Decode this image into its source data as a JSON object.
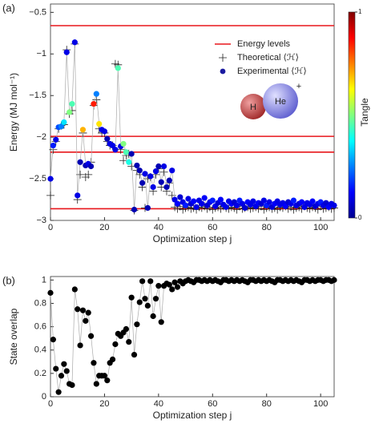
{
  "chart_data": [
    {
      "type": "scatter",
      "panel_label": "(a)",
      "xlabel": "Optimization step j",
      "ylabel": "Energy (MJ mol⁻¹)",
      "xlim": [
        0,
        105
      ],
      "xticks": [
        0,
        20,
        40,
        60,
        80,
        100
      ],
      "ylim": [
        -3.0,
        -0.4
      ],
      "yticks": [
        {
          "value": -3,
          "label": "−3"
        },
        {
          "value": -2.5,
          "label": "−2.5"
        },
        {
          "value": -2,
          "label": "−2"
        },
        {
          "value": -1.5,
          "label": "−1.5"
        },
        {
          "value": -1,
          "label": "−1"
        },
        {
          "value": -0.5,
          "label": "−0.5"
        }
      ],
      "legend": "upper right",
      "colorbar": {
        "label": "Tangle",
        "clim": [
          0,
          1
        ],
        "cticks": [
          0,
          1
        ],
        "colormap": "jet"
      },
      "molecule": {
        "labels": [
          "H",
          "He",
          "+"
        ]
      },
      "series": [
        {
          "name": "Energy levels",
          "style": "hline",
          "color": "#e8161b",
          "values": [
            -0.66,
            -1.99,
            -2.18,
            -2.86
          ]
        },
        {
          "name": "Theoretical ⟨ℋ⟩",
          "style": "plus",
          "color": "#222222",
          "x": [
            0,
            1,
            2,
            3,
            4,
            5,
            6,
            7,
            8,
            9,
            10,
            11,
            12,
            13,
            14,
            15,
            16,
            17,
            18,
            19,
            20,
            21,
            22,
            23,
            24,
            25,
            26,
            27,
            28,
            29,
            30,
            31,
            32,
            33,
            34,
            35,
            36,
            37,
            38,
            39,
            40,
            41,
            42,
            43,
            44,
            45,
            46,
            47,
            48,
            49,
            50,
            51,
            52,
            53,
            54,
            55,
            56,
            57,
            58,
            59,
            60,
            61,
            62,
            63,
            64,
            65,
            66,
            67,
            68,
            69,
            70,
            71,
            72,
            73,
            74,
            75,
            76,
            77,
            78,
            79,
            80,
            81,
            82,
            83,
            84,
            85,
            86,
            87,
            88,
            89,
            90,
            91,
            92,
            93,
            94,
            95,
            96,
            97,
            98,
            99,
            100,
            101,
            102,
            103,
            104,
            105
          ],
          "values": [
            -2.7,
            -2.15,
            -2.05,
            -1.9,
            -1.86,
            -1.85,
            -0.95,
            -1.72,
            -1.68,
            -0.88,
            -2.75,
            -2.45,
            -1.95,
            -2.48,
            -2.45,
            -2.3,
            -1.62,
            -1.55,
            -1.9,
            -1.95,
            -1.95,
            -2.05,
            -2.1,
            -2.1,
            -1.12,
            -1.13,
            -2.15,
            -2.28,
            -2.22,
            -2.2,
            -2.35,
            -2.88,
            -2.4,
            -2.45,
            -2.6,
            -2.85,
            -2.5,
            -2.48,
            -2.65,
            -2.45,
            -2.38,
            -2.6,
            -2.42,
            -2.65,
            -2.55,
            -2.7,
            -2.84,
            -2.86,
            -2.83,
            -2.87,
            -2.85,
            -2.84,
            -2.86,
            -2.85,
            -2.87,
            -2.84,
            -2.85,
            -2.83,
            -2.86,
            -2.84,
            -2.87,
            -2.85,
            -2.84,
            -2.86,
            -2.83,
            -2.85,
            -2.86,
            -2.84,
            -2.85,
            -2.87,
            -2.83,
            -2.86,
            -2.85,
            -2.84,
            -2.86,
            -2.85,
            -2.84,
            -2.86,
            -2.83,
            -2.87,
            -2.85,
            -2.84,
            -2.86,
            -2.85,
            -2.87,
            -2.84,
            -2.85,
            -2.83,
            -2.86,
            -2.84,
            -2.87,
            -2.85,
            -2.84,
            -2.86,
            -2.83,
            -2.85,
            -2.86,
            -2.84,
            -2.85,
            -2.87,
            -2.83,
            -2.86,
            -2.85,
            -2.84,
            -2.86,
            -2.85
          ]
        },
        {
          "name": "Experimental ⟨ℋ⟩",
          "style": "dot",
          "color": "#1a1aa0",
          "line_color": "#aaaaaa",
          "x": [
            0,
            1,
            2,
            3,
            4,
            5,
            6,
            7,
            8,
            9,
            10,
            11,
            12,
            13,
            14,
            15,
            16,
            17,
            18,
            19,
            20,
            21,
            22,
            23,
            24,
            25,
            26,
            27,
            28,
            29,
            30,
            31,
            32,
            33,
            34,
            35,
            36,
            37,
            38,
            39,
            40,
            41,
            42,
            43,
            44,
            45,
            46,
            47,
            48,
            49,
            50,
            51,
            52,
            53,
            54,
            55,
            56,
            57,
            58,
            59,
            60,
            61,
            62,
            63,
            64,
            65,
            66,
            67,
            68,
            69,
            70,
            71,
            72,
            73,
            74,
            75,
            76,
            77,
            78,
            79,
            80,
            81,
            82,
            83,
            84,
            85,
            86,
            87,
            88,
            89,
            90,
            91,
            92,
            93,
            94,
            95,
            96,
            97,
            98,
            99,
            100,
            101,
            102,
            103,
            104,
            105
          ],
          "values": [
            -2.5,
            -2.1,
            -2.03,
            -1.88,
            -1.87,
            -1.82,
            -0.98,
            -1.7,
            -1.6,
            -0.86,
            -2.7,
            -2.3,
            -1.91,
            -2.34,
            -2.32,
            -2.35,
            -1.6,
            -1.48,
            -1.84,
            -1.91,
            -1.93,
            -2.02,
            -2.08,
            -2.1,
            -2.15,
            -1.17,
            -2.11,
            -2.08,
            -2.18,
            -2.3,
            -2.2,
            -2.87,
            -2.34,
            -2.4,
            -2.55,
            -2.44,
            -2.85,
            -2.47,
            -2.6,
            -2.41,
            -2.35,
            -2.54,
            -2.35,
            -2.6,
            -2.52,
            -2.4,
            -2.75,
            -2.8,
            -2.72,
            -2.78,
            -2.82,
            -2.74,
            -2.8,
            -2.77,
            -2.84,
            -2.76,
            -2.8,
            -2.73,
            -2.82,
            -2.78,
            -2.76,
            -2.83,
            -2.79,
            -2.75,
            -2.81,
            -2.84,
            -2.77,
            -2.8,
            -2.78,
            -2.82,
            -2.76,
            -2.8,
            -2.85,
            -2.78,
            -2.81,
            -2.77,
            -2.83,
            -2.79,
            -2.8,
            -2.76,
            -2.82,
            -2.78,
            -2.84,
            -2.8,
            -2.77,
            -2.81,
            -2.79,
            -2.83,
            -2.78,
            -2.8,
            -2.76,
            -2.82,
            -2.8,
            -2.78,
            -2.84,
            -2.79,
            -2.81,
            -2.77,
            -2.83,
            -2.8,
            -2.78,
            -2.82,
            -2.79,
            -2.84,
            -2.8,
            -2.82
          ],
          "tangle": [
            0.1,
            0.15,
            0.1,
            0.2,
            0.25,
            0.35,
            0.1,
            0.5,
            0.45,
            0.1,
            0.1,
            0.05,
            0.7,
            0.05,
            0.1,
            0.05,
            0.85,
            0.25,
            0.65,
            0.1,
            0.1,
            0.05,
            0.1,
            0.1,
            0.1,
            0.45,
            0.1,
            0.5,
            0.45,
            0.4,
            0.05,
            0.05,
            0.05,
            0.05,
            0.05,
            0.1,
            0.05,
            0.1,
            0.1,
            0.1,
            0.05,
            0.05,
            0.1,
            0.05,
            0.05,
            0.1,
            0.1,
            0.12,
            0.08,
            0.1,
            0.15,
            0.1,
            0.08,
            0.12,
            0.1,
            0.1,
            0.1,
            0.12,
            0.08,
            0.1,
            0.15,
            0.1,
            0.08,
            0.12,
            0.1,
            0.1,
            0.1,
            0.12,
            0.08,
            0.1,
            0.15,
            0.1,
            0.08,
            0.12,
            0.1,
            0.1,
            0.1,
            0.12,
            0.08,
            0.1,
            0.15,
            0.1,
            0.08,
            0.12,
            0.1,
            0.1,
            0.1,
            0.12,
            0.08,
            0.1,
            0.15,
            0.1,
            0.08,
            0.12,
            0.1,
            0.1,
            0.1,
            0.12,
            0.08,
            0.1,
            0.15,
            0.1,
            0.08,
            0.12,
            0.1,
            0.1
          ]
        }
      ]
    },
    {
      "type": "line",
      "panel_label": "(b)",
      "xlabel": "Optimization step j",
      "ylabel": "State overlap",
      "xlim": [
        0,
        105
      ],
      "xticks": [
        0,
        20,
        40,
        60,
        80,
        100
      ],
      "ylim": [
        0,
        1.03
      ],
      "yticks": [
        0,
        0.2,
        0.4,
        0.6,
        0.8,
        1
      ],
      "series": [
        {
          "style": "dot",
          "color": "#000000",
          "line_color": "#aaaaaa",
          "x": [
            0,
            1,
            2,
            3,
            4,
            5,
            6,
            7,
            8,
            9,
            10,
            11,
            12,
            13,
            14,
            15,
            16,
            17,
            18,
            19,
            20,
            21,
            22,
            23,
            24,
            25,
            26,
            27,
            28,
            29,
            30,
            31,
            32,
            33,
            34,
            35,
            36,
            37,
            38,
            39,
            40,
            41,
            42,
            43,
            44,
            45,
            46,
            47,
            48,
            49,
            50,
            51,
            52,
            53,
            54,
            55,
            56,
            57,
            58,
            59,
            60,
            61,
            62,
            63,
            64,
            65,
            66,
            67,
            68,
            69,
            70,
            71,
            72,
            73,
            74,
            75,
            76,
            77,
            78,
            79,
            80,
            81,
            82,
            83,
            84,
            85,
            86,
            87,
            88,
            89,
            90,
            91,
            92,
            93,
            94,
            95,
            96,
            97,
            98,
            99,
            100,
            101,
            102,
            103,
            104,
            105
          ],
          "values": [
            0.89,
            0.49,
            0.24,
            0.04,
            0.18,
            0.28,
            0.22,
            0.11,
            0.1,
            0.92,
            0.75,
            0.44,
            0.74,
            0.65,
            0.72,
            0.52,
            0.29,
            0.11,
            0.18,
            0.18,
            0.18,
            0.14,
            0.29,
            0.32,
            0.45,
            0.54,
            0.52,
            0.55,
            0.58,
            0.47,
            0.85,
            0.36,
            0.62,
            0.81,
            0.99,
            0.84,
            0.78,
            0.99,
            0.69,
            0.84,
            0.95,
            0.64,
            0.95,
            0.97,
            0.96,
            0.92,
            0.98,
            0.94,
            0.99,
            0.97,
            0.99,
            1,
            0.99,
            0.98,
            1,
            1,
            0.99,
            1,
            0.99,
            1,
            0.99,
            1,
            0.99,
            0.98,
            1,
            1,
            0.99,
            1,
            0.99,
            1,
            0.99,
            1,
            0.99,
            0.98,
            1,
            1,
            0.99,
            1,
            0.99,
            1,
            0.99,
            1,
            0.99,
            0.98,
            1,
            1,
            0.99,
            1,
            0.99,
            1,
            0.99,
            1,
            0.99,
            0.98,
            1,
            1,
            0.99,
            1,
            0.99,
            1,
            1,
            0.99,
            1,
            1,
            0.99,
            1
          ]
        }
      ]
    }
  ]
}
